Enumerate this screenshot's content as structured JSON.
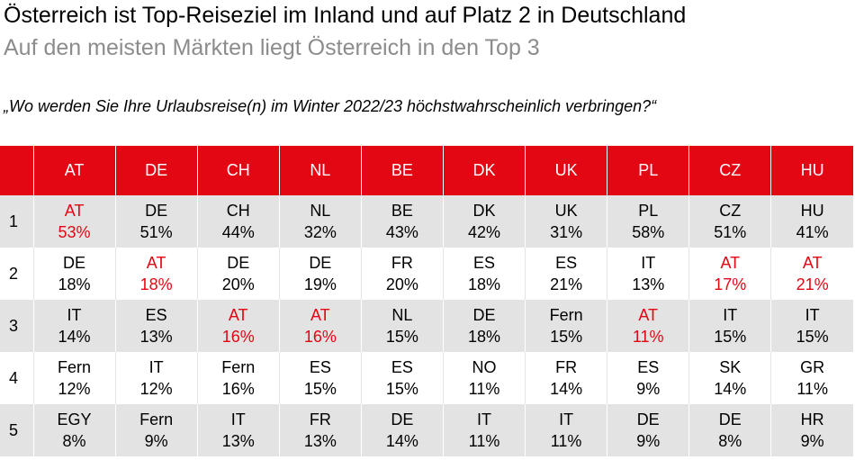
{
  "title": "Österreich ist Top-Reiseziel im Inland und auf Platz 2 in Deutschland",
  "subtitle": "Auf den meisten Märkten liegt Österreich in den Top 3",
  "question": "„Wo werden Sie Ihre Urlaubsreise(n) im Winter 2022/23 höchstwahrscheinlich verbringen?“",
  "colors": {
    "header_bg": "#e30613",
    "highlight": "#e30613",
    "row_gray": "#e3e3e3",
    "subtitle": "#8c8c8c"
  },
  "table": {
    "corner": "",
    "columns": [
      "AT",
      "DE",
      "CH",
      "NL",
      "BE",
      "DK",
      "UK",
      "PL",
      "CZ",
      "HU"
    ],
    "rows": [
      {
        "rank": "1",
        "cells": [
          {
            "dest": "AT",
            "pct": "53%",
            "highlight": true
          },
          {
            "dest": "DE",
            "pct": "51%"
          },
          {
            "dest": "CH",
            "pct": "44%"
          },
          {
            "dest": "NL",
            "pct": "32%"
          },
          {
            "dest": "BE",
            "pct": "43%"
          },
          {
            "dest": "DK",
            "pct": "42%"
          },
          {
            "dest": "UK",
            "pct": "31%"
          },
          {
            "dest": "PL",
            "pct": "58%"
          },
          {
            "dest": "CZ",
            "pct": "51%"
          },
          {
            "dest": "HU",
            "pct": "41%"
          }
        ]
      },
      {
        "rank": "2",
        "cells": [
          {
            "dest": "DE",
            "pct": "18%"
          },
          {
            "dest": "AT",
            "pct": "18%",
            "highlight": true
          },
          {
            "dest": "DE",
            "pct": "20%"
          },
          {
            "dest": "DE",
            "pct": "19%"
          },
          {
            "dest": "FR",
            "pct": "20%"
          },
          {
            "dest": "ES",
            "pct": "18%"
          },
          {
            "dest": "ES",
            "pct": "21%"
          },
          {
            "dest": "IT",
            "pct": "13%"
          },
          {
            "dest": "AT",
            "pct": "17%",
            "highlight": true
          },
          {
            "dest": "AT",
            "pct": "21%",
            "highlight": true
          }
        ]
      },
      {
        "rank": "3",
        "cells": [
          {
            "dest": "IT",
            "pct": "14%"
          },
          {
            "dest": "ES",
            "pct": "13%"
          },
          {
            "dest": "AT",
            "pct": "16%",
            "highlight": true
          },
          {
            "dest": "AT",
            "pct": "16%",
            "highlight": true
          },
          {
            "dest": "NL",
            "pct": "15%"
          },
          {
            "dest": "DE",
            "pct": "18%"
          },
          {
            "dest": "Fern",
            "pct": "15%"
          },
          {
            "dest": "AT",
            "pct": "11%",
            "highlight": true
          },
          {
            "dest": "IT",
            "pct": "15%"
          },
          {
            "dest": "IT",
            "pct": "15%"
          }
        ]
      },
      {
        "rank": "4",
        "cells": [
          {
            "dest": "Fern",
            "pct": "12%"
          },
          {
            "dest": "IT",
            "pct": "12%"
          },
          {
            "dest": "Fern",
            "pct": "16%"
          },
          {
            "dest": "ES",
            "pct": "15%"
          },
          {
            "dest": "ES",
            "pct": "15%"
          },
          {
            "dest": "NO",
            "pct": "11%"
          },
          {
            "dest": "FR",
            "pct": "14%"
          },
          {
            "dest": "ES",
            "pct": "9%"
          },
          {
            "dest": "SK",
            "pct": "14%"
          },
          {
            "dest": "GR",
            "pct": "11%"
          }
        ]
      },
      {
        "rank": "5",
        "cells": [
          {
            "dest": "EGY",
            "pct": "8%"
          },
          {
            "dest": "Fern",
            "pct": "9%"
          },
          {
            "dest": "IT",
            "pct": "13%"
          },
          {
            "dest": "FR",
            "pct": "13%"
          },
          {
            "dest": "DE",
            "pct": "14%"
          },
          {
            "dest": "IT",
            "pct": "11%"
          },
          {
            "dest": "IT",
            "pct": "11%"
          },
          {
            "dest": "DE",
            "pct": "9%"
          },
          {
            "dest": "DE",
            "pct": "8%"
          },
          {
            "dest": "HR",
            "pct": "9%"
          }
        ]
      }
    ]
  }
}
